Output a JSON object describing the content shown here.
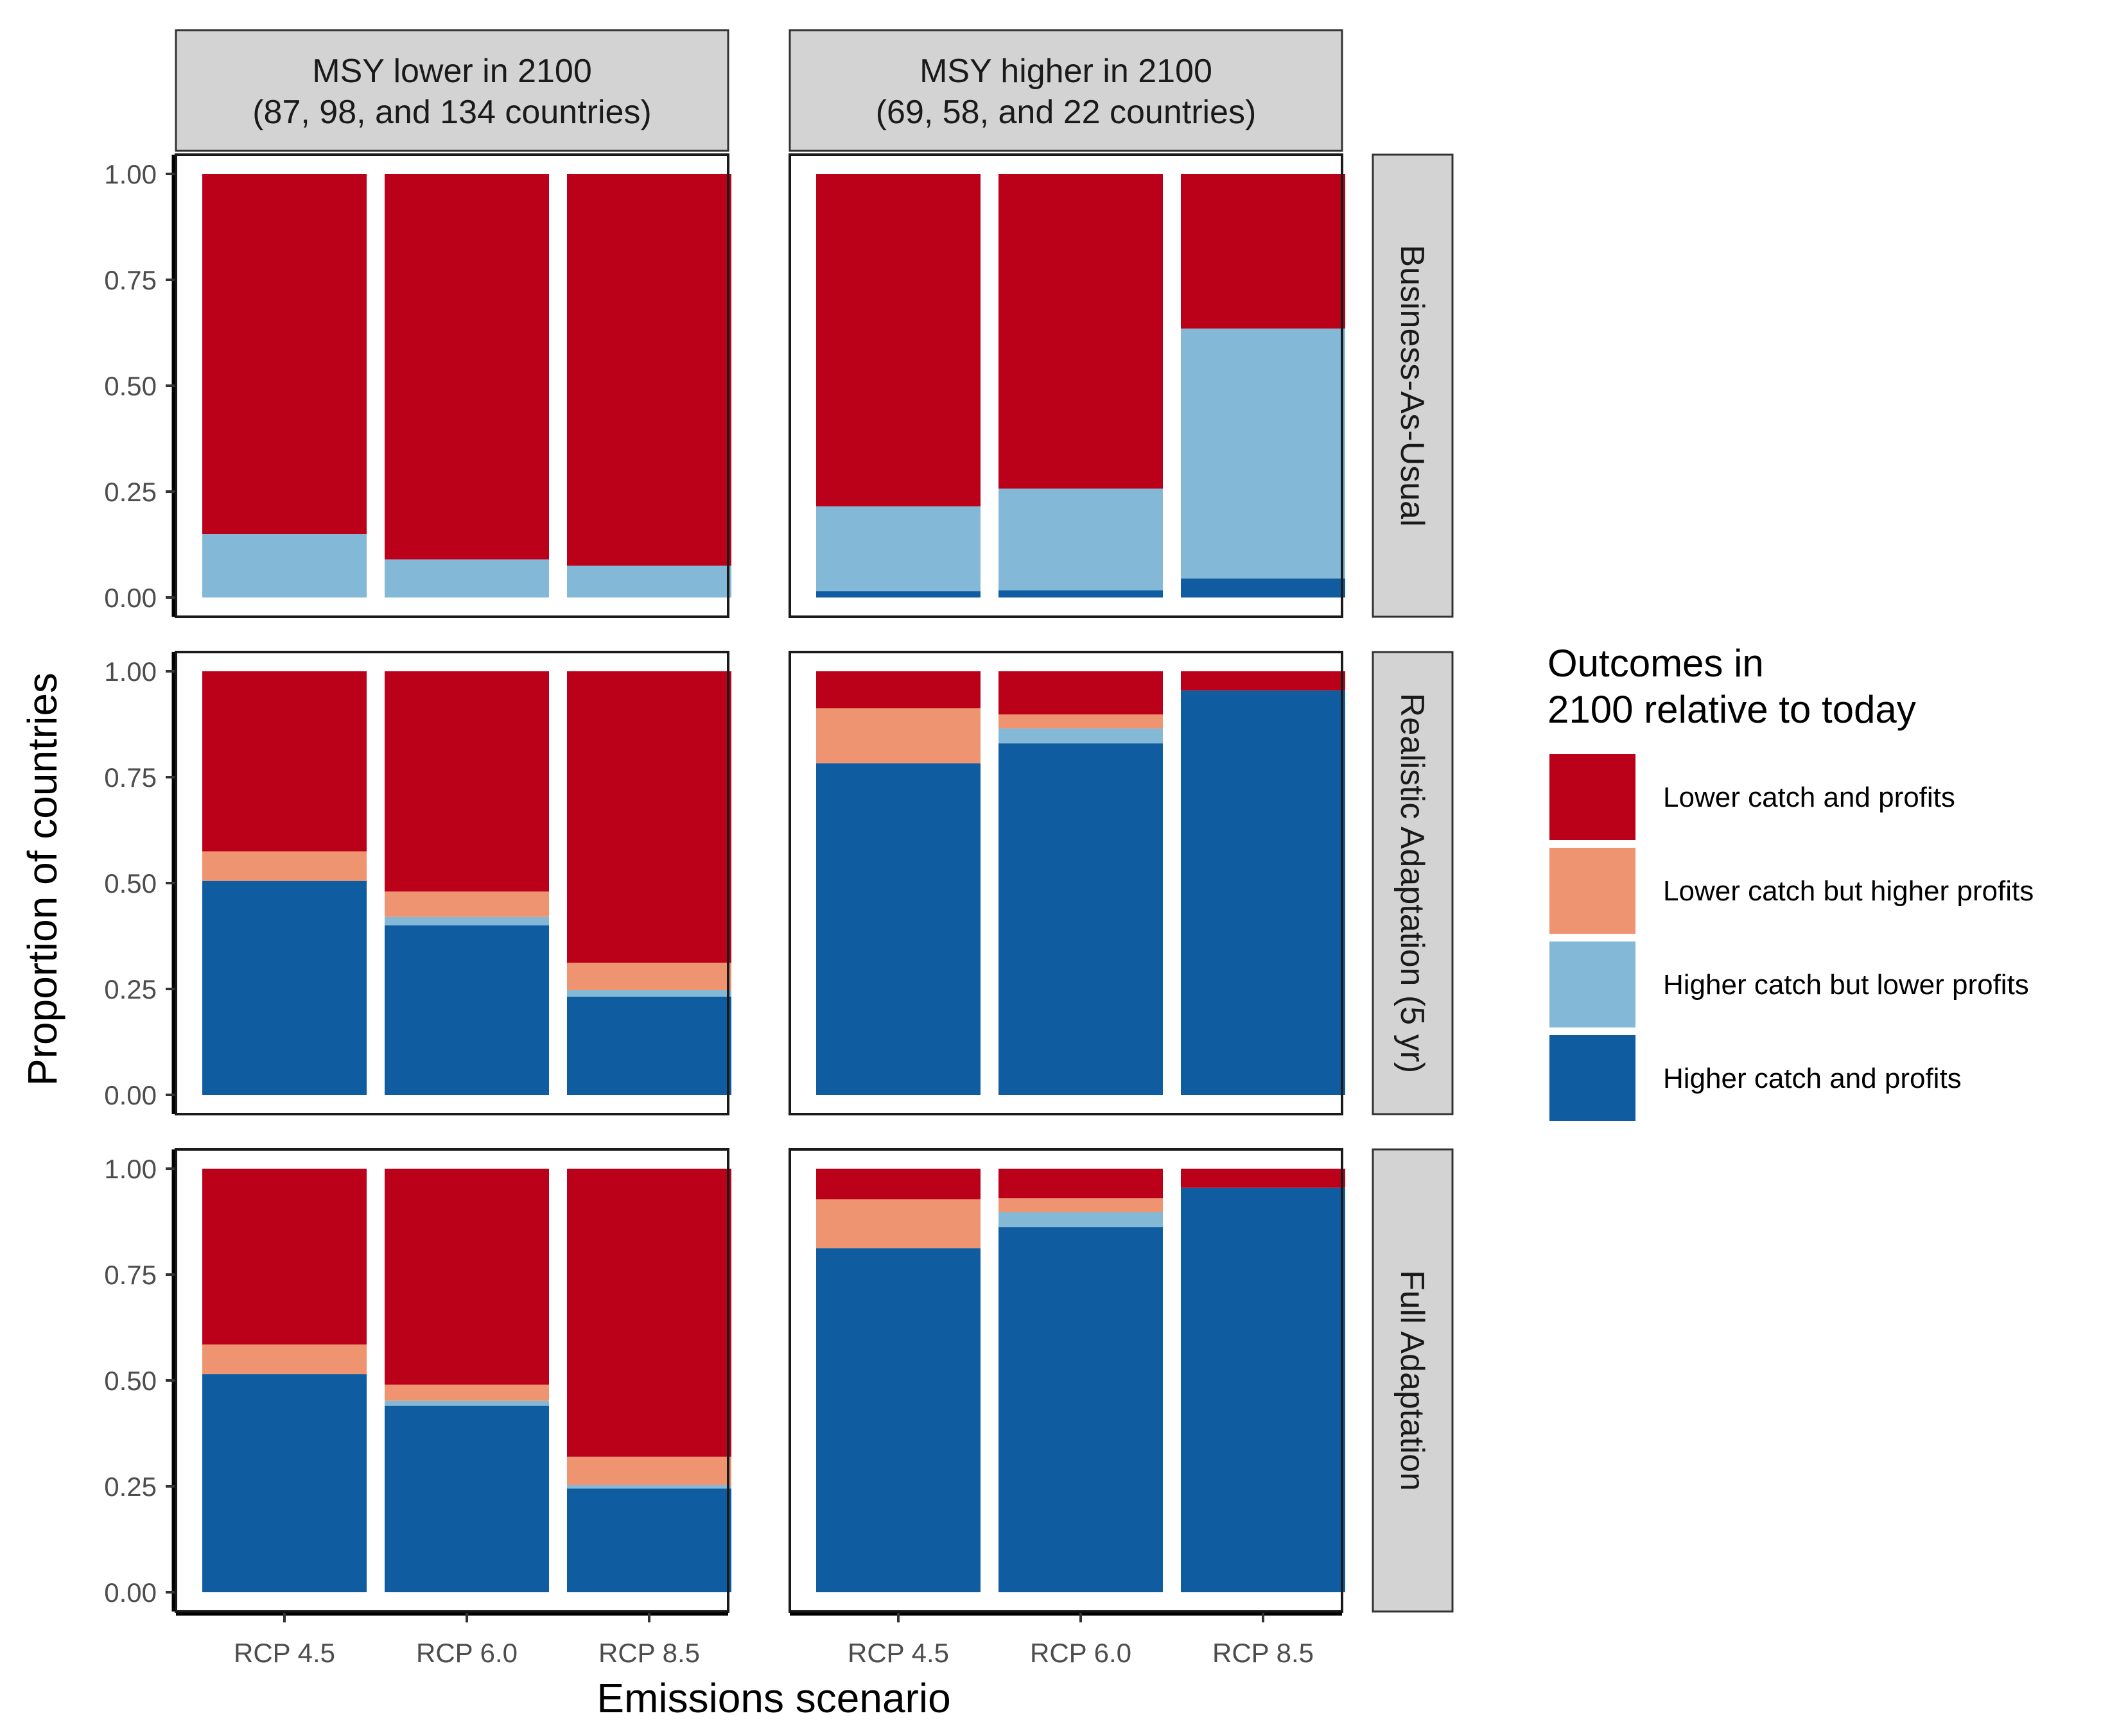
{
  "chart_data": {
    "type": "bar",
    "stacked": true,
    "xlabel": "Emissions scenario",
    "ylabel": "Proportion of countries",
    "ylim": [
      0,
      1
    ],
    "y_ticks": [
      "0.00",
      "0.25",
      "0.50",
      "0.75",
      "1.00"
    ],
    "categories": [
      "RCP 4.5",
      "RCP 6.0",
      "RCP 8.5"
    ],
    "column_facets": [
      {
        "title": "MSY lower in 2100",
        "subtitle": "(87, 98, and 134 countries)"
      },
      {
        "title": "MSY higher in 2100",
        "subtitle": "(69, 58, and 22 countries)"
      }
    ],
    "row_facets": [
      "Business-As-Usual",
      "Realistic Adaptation (5 yr)",
      "Full Adaptation"
    ],
    "legend": {
      "title_line1": "Outcomes in",
      "title_line2": "2100 relative to today",
      "position": "right"
    },
    "series": [
      {
        "name": "Lower catch and profits",
        "color": "#BB001A"
      },
      {
        "name": "Lower catch but higher profits",
        "color": "#EF9470"
      },
      {
        "name": "Higher catch but lower profits",
        "color": "#83B8D7"
      },
      {
        "name": "Higher catch and profits",
        "color": "#0F5CA0"
      }
    ],
    "panels": [
      {
        "row": 0,
        "col": 0,
        "values": {
          "Higher catch and profits": [
            0,
            0,
            0
          ],
          "Higher catch but lower profits": [
            0.15,
            0.09,
            0.075
          ],
          "Lower catch but higher profits": [
            0,
            0,
            0
          ],
          "Lower catch and profits": [
            0.85,
            0.91,
            0.925
          ]
        }
      },
      {
        "row": 0,
        "col": 1,
        "values": {
          "Higher catch and profits": [
            0.015,
            0.017,
            0.045
          ],
          "Higher catch but lower profits": [
            0.2,
            0.24,
            0.59
          ],
          "Lower catch but higher profits": [
            0,
            0,
            0
          ],
          "Lower catch and profits": [
            0.785,
            0.743,
            0.365
          ]
        }
      },
      {
        "row": 1,
        "col": 0,
        "values": {
          "Higher catch and profits": [
            0.505,
            0.4,
            0.232
          ],
          "Higher catch but lower profits": [
            0,
            0.02,
            0.015
          ],
          "Lower catch but higher profits": [
            0.07,
            0.06,
            0.065
          ],
          "Lower catch and profits": [
            0.425,
            0.52,
            0.688
          ]
        }
      },
      {
        "row": 1,
        "col": 1,
        "values": {
          "Higher catch and profits": [
            0.783,
            0.83,
            0.955
          ],
          "Higher catch but lower profits": [
            0,
            0.035,
            0
          ],
          "Lower catch but higher profits": [
            0.13,
            0.033,
            0
          ],
          "Lower catch and profits": [
            0.087,
            0.102,
            0.045
          ]
        }
      },
      {
        "row": 2,
        "col": 0,
        "values": {
          "Higher catch and profits": [
            0.515,
            0.44,
            0.245
          ],
          "Higher catch but lower profits": [
            0,
            0.012,
            0.008
          ],
          "Lower catch but higher profits": [
            0.07,
            0.038,
            0.067
          ],
          "Lower catch and profits": [
            0.415,
            0.51,
            0.68
          ]
        }
      },
      {
        "row": 2,
        "col": 1,
        "values": {
          "Higher catch and profits": [
            0.812,
            0.862,
            0.955
          ],
          "Higher catch but lower profits": [
            0,
            0.035,
            0
          ],
          "Lower catch but higher profits": [
            0.116,
            0.033,
            0
          ],
          "Lower catch and profits": [
            0.072,
            0.07,
            0.045
          ]
        }
      }
    ]
  }
}
